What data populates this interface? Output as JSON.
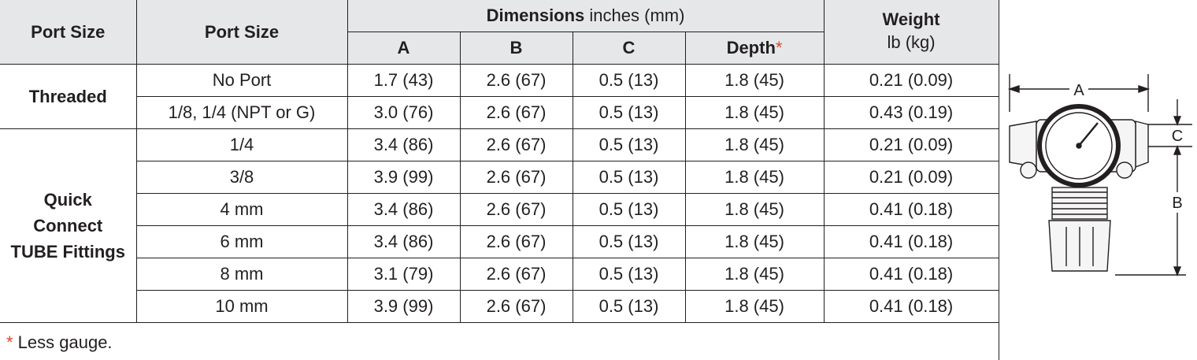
{
  "table": {
    "headers": {
      "port_size_1": "Port Size",
      "port_size_2": "Port Size",
      "dimensions_bold": "Dimensions",
      "dimensions_unit": " inches (mm)",
      "a": "A",
      "b": "B",
      "c": "C",
      "depth": "Depth",
      "depth_marker": "*",
      "weight": "Weight",
      "weight_unit": "lb (kg)"
    },
    "groups": [
      {
        "label": "Threaded"
      },
      {
        "label_lines": [
          "Quick",
          "Connect",
          "TUBE Fittings"
        ]
      }
    ],
    "rows": [
      {
        "port": "No Port",
        "a": "1.7 (43)",
        "b": "2.6 (67)",
        "c": "0.5 (13)",
        "depth": "1.8 (45)",
        "weight": "0.21 (0.09)"
      },
      {
        "port": "1/8, 1/4 (NPT or G)",
        "a": "3.0 (76)",
        "b": "2.6 (67)",
        "c": "0.5 (13)",
        "depth": "1.8 (45)",
        "weight": "0.43 (0.19)"
      },
      {
        "port": "1/4",
        "a": "3.4 (86)",
        "b": "2.6 (67)",
        "c": "0.5 (13)",
        "depth": "1.8 (45)",
        "weight": "0.21 (0.09)"
      },
      {
        "port": "3/8",
        "a": "3.9 (99)",
        "b": "2.6 (67)",
        "c": "0.5 (13)",
        "depth": "1.8 (45)",
        "weight": "0.21 (0.09)"
      },
      {
        "port": "4 mm",
        "a": "3.4 (86)",
        "b": "2.6 (67)",
        "c": "0.5 (13)",
        "depth": "1.8 (45)",
        "weight": "0.41 (0.18)"
      },
      {
        "port": "6 mm",
        "a": "3.4 (86)",
        "b": "2.6 (67)",
        "c": "0.5 (13)",
        "depth": "1.8 (45)",
        "weight": "0.41 (0.18)"
      },
      {
        "port": "8 mm",
        "a": "3.1 (79)",
        "b": "2.6 (67)",
        "c": "0.5 (13)",
        "depth": "1.8 (45)",
        "weight": "0.41 (0.18)"
      },
      {
        "port": "10 mm",
        "a": "3.9 (99)",
        "b": "2.6 (67)",
        "c": "0.5 (13)",
        "depth": "1.8 (45)",
        "weight": "0.41 (0.18)"
      }
    ]
  },
  "footnote": {
    "marker": "*",
    "text": " Less gauge."
  },
  "diagram": {
    "label_a": "A",
    "label_b": "B",
    "label_c": "C"
  },
  "colors": {
    "header_bg": "#e6e7e8",
    "asterisk": "#e0442e",
    "rule": "#231f20"
  }
}
